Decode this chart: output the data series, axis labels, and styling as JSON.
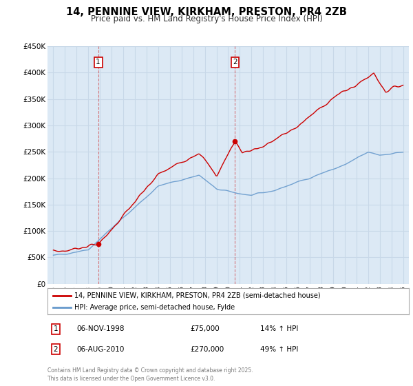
{
  "title": "14, PENNINE VIEW, KIRKHAM, PRESTON, PR4 2ZB",
  "subtitle": "Price paid vs. HM Land Registry's House Price Index (HPI)",
  "background_color": "#ffffff",
  "plot_bg_color": "#dce9f5",
  "grid_color": "#c8d8e8",
  "title_fontsize": 10.5,
  "subtitle_fontsize": 8.5,
  "xlim": [
    1994.5,
    2025.5
  ],
  "ylim": [
    0,
    450000
  ],
  "yticks": [
    0,
    50000,
    100000,
    150000,
    200000,
    250000,
    300000,
    350000,
    400000,
    450000
  ],
  "ytick_labels": [
    "£0",
    "£50K",
    "£100K",
    "£150K",
    "£200K",
    "£250K",
    "£300K",
    "£350K",
    "£400K",
    "£450K"
  ],
  "xticks": [
    1995,
    1996,
    1997,
    1998,
    1999,
    2000,
    2001,
    2002,
    2003,
    2004,
    2005,
    2006,
    2007,
    2008,
    2009,
    2010,
    2011,
    2012,
    2013,
    2014,
    2015,
    2016,
    2017,
    2018,
    2019,
    2020,
    2021,
    2022,
    2023,
    2024,
    2025
  ],
  "sale1_x": 1998.846,
  "sale1_y": 75000,
  "sale1_label": "1",
  "sale1_date": "06-NOV-1998",
  "sale1_price": "£75,000",
  "sale1_hpi": "14% ↑ HPI",
  "sale2_x": 2010.587,
  "sale2_y": 270000,
  "sale2_label": "2",
  "sale2_date": "06-AUG-2010",
  "sale2_price": "£270,000",
  "sale2_hpi": "49% ↑ HPI",
  "line1_color": "#cc0000",
  "line2_color": "#6699cc",
  "line1_label": "14, PENNINE VIEW, KIRKHAM, PRESTON, PR4 2ZB (semi-detached house)",
  "line2_label": "HPI: Average price, semi-detached house, Fylde",
  "footer": "Contains HM Land Registry data © Crown copyright and database right 2025.\nThis data is licensed under the Open Government Licence v3.0.",
  "marker_color": "#cc0000",
  "sale_box_color": "#cc0000",
  "vline_color": "#cc0000"
}
